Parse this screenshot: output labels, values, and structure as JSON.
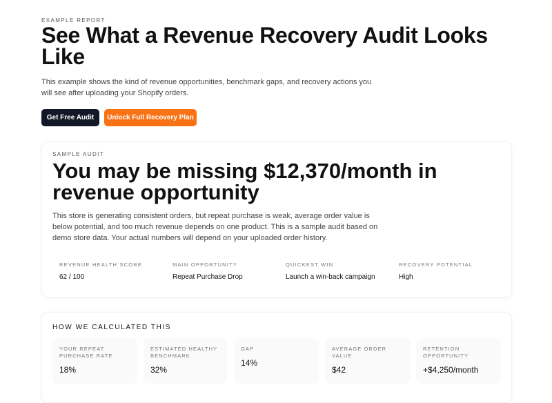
{
  "header": {
    "eyebrow": "EXAMPLE REPORT",
    "title": "See What a Revenue Recovery Audit Looks Like",
    "description": "This example shows the kind of revenue opportunities, benchmark gaps, and recovery actions you will see after uploading your Shopify orders."
  },
  "buttons": [
    {
      "label": "Get Free Audit"
    },
    {
      "label": "Unlock Full Recovery Plan"
    }
  ],
  "audit": {
    "eyebrow": "SAMPLE AUDIT",
    "headline": "You may be missing $12,370/month in revenue opportunity",
    "description": "This store is generating consistent orders, but repeat purchase is weak, average order value is below potential, and too much revenue depends on one product. This is a sample audit based on demo store data. Your actual numbers will depend on your uploaded order history.",
    "stats": [
      {
        "label": "REVENUE HEALTH SCORE",
        "value": "62 / 100"
      },
      {
        "label": "MAIN OPPORTUNITY",
        "value": "Repeat Purchase Drop"
      },
      {
        "label": "QUICKEST WIN",
        "value": "Launch a win-back campaign"
      },
      {
        "label": "RECOVERY POTENTIAL",
        "value": "High"
      }
    ]
  },
  "calculation": {
    "title": "HOW WE CALCULATED THIS",
    "items": [
      {
        "label": "YOUR REPEAT PURCHASE RATE",
        "value": "18%"
      },
      {
        "label": "ESTIMATED HEALTHY BENCHMARK",
        "value": "32%"
      },
      {
        "label": "GAP",
        "value": "14%"
      },
      {
        "label": "AVERAGE ORDER VALUE",
        "value": "$42"
      },
      {
        "label": "RETENTION OPPORTUNITY",
        "value": "+$4,250/month"
      }
    ]
  }
}
